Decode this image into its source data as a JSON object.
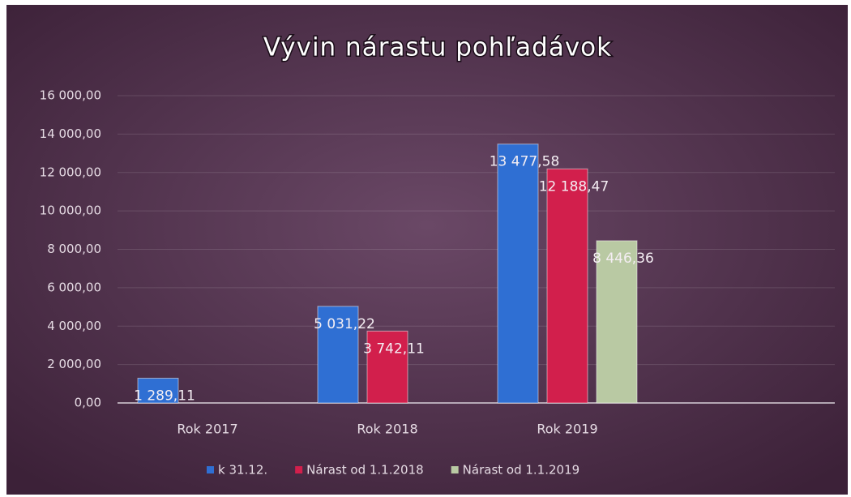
{
  "chart_data": {
    "type": "bar",
    "title": "Vývin nárastu pohľadávok",
    "categories": [
      "Rok 2017",
      "Rok 2018",
      "Rok 2019"
    ],
    "series": [
      {
        "name": "k 31.12.",
        "color": "#2f6fd3",
        "values": [
          1289.11,
          5031.22,
          13477.58
        ],
        "value_labels": [
          "1 289,11",
          "5 031,22",
          "13 477,58"
        ]
      },
      {
        "name": "Nárast od 1.1.2018",
        "color": "#d21f4c",
        "values": [
          null,
          3742.11,
          12188.47
        ],
        "value_labels": [
          null,
          "3 742,11",
          "12 188,47"
        ]
      },
      {
        "name": "Nárast od 1.1.2019",
        "color": "#b9c9a3",
        "values": [
          null,
          null,
          8446.36
        ],
        "value_labels": [
          null,
          null,
          "8 446,36"
        ]
      }
    ],
    "ylim": [
      0,
      16000
    ],
    "yticks": [
      {
        "value": 0,
        "label": "0,00"
      },
      {
        "value": 2000,
        "label": "2 000,00"
      },
      {
        "value": 4000,
        "label": "4 000,00"
      },
      {
        "value": 6000,
        "label": "6 000,00"
      },
      {
        "value": 8000,
        "label": "8 000,00"
      },
      {
        "value": 10000,
        "label": "10 000,00"
      },
      {
        "value": 12000,
        "label": "12 000,00"
      },
      {
        "value": 14000,
        "label": "14 000,00"
      },
      {
        "value": 16000,
        "label": "16 000,00"
      }
    ],
    "grid": true,
    "legend": "bottom"
  }
}
